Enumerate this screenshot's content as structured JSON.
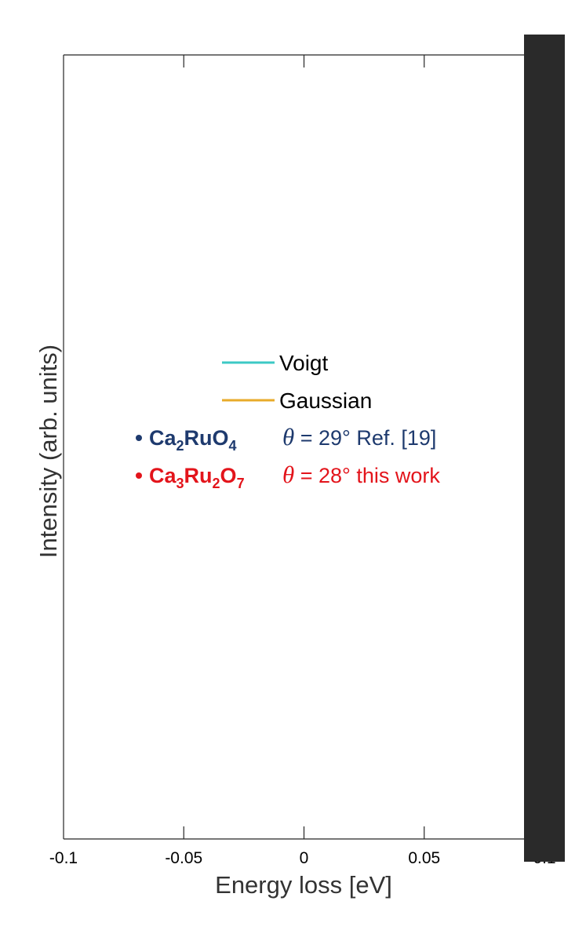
{
  "chart_data": {
    "type": "line",
    "xlabel": "Energy loss [eV]",
    "ylabel": "Intensity (arb. units)",
    "xlim": [
      -0.1,
      0.1
    ],
    "x_ticks": [
      -0.1,
      -0.05,
      0,
      0.05,
      0.1
    ],
    "x_tick_labels": [
      "-0.1",
      "-0.05",
      "0",
      "0.05",
      "0.1"
    ],
    "y_ticks": [],
    "grid": false,
    "legend_position": "center",
    "series": [
      {
        "name": "Voigt",
        "color": "#3cc9c5",
        "x": [],
        "y": []
      },
      {
        "name": "Gaussian",
        "color": "#e8ab2a",
        "x": [],
        "y": []
      }
    ],
    "annotations": [
      {
        "marker_color": "#1e3a6e",
        "compound": [
          "Ca",
          "2",
          "RuO",
          "4"
        ],
        "theta_symbol": "θ",
        "text": " = 29° Ref. [19]"
      },
      {
        "marker_color": "#e3141b",
        "compound": [
          "Ca",
          "3",
          "Ru",
          "2",
          "O",
          "7"
        ],
        "theta_symbol": "θ",
        "text": " = 28° this work"
      }
    ]
  }
}
